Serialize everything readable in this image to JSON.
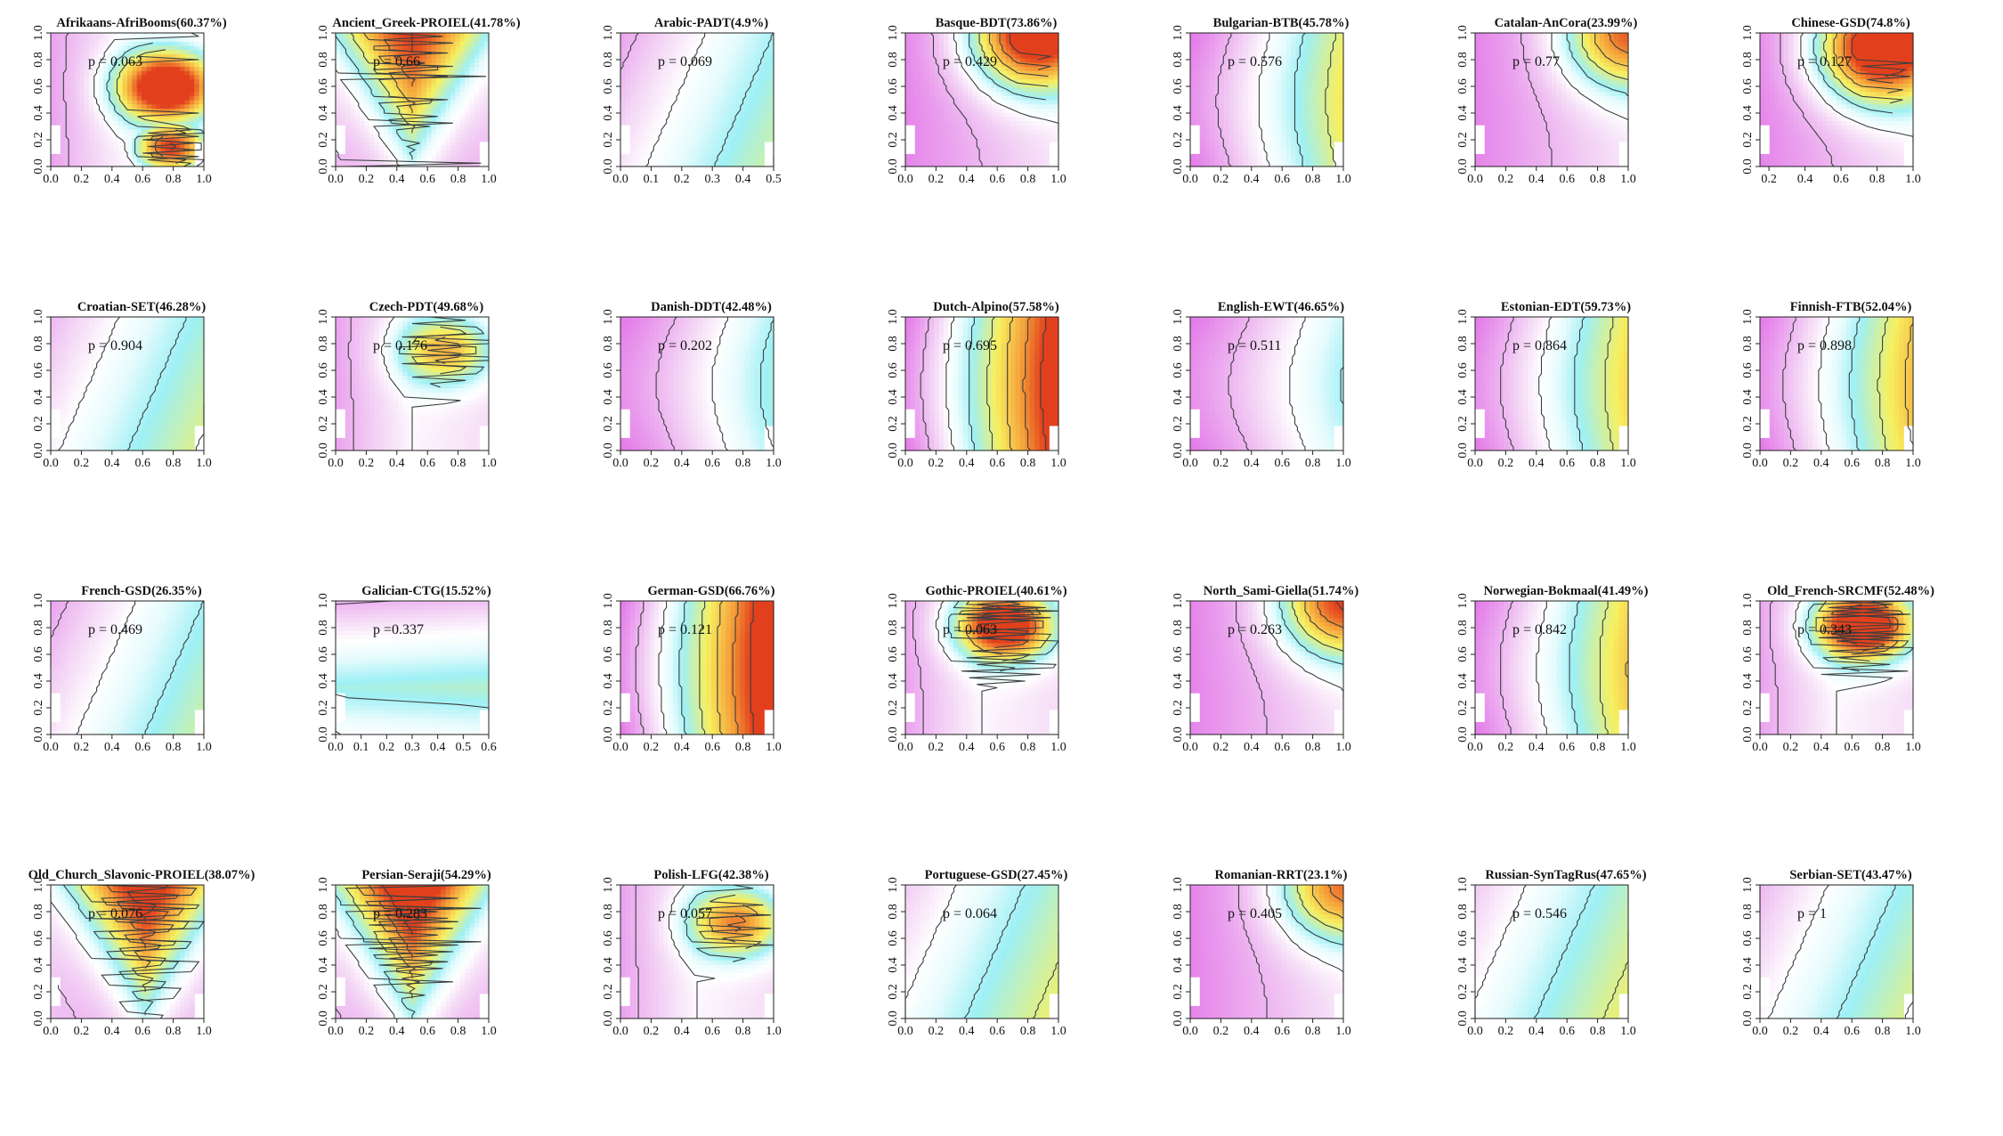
{
  "chart_data": [
    {
      "type": "heatmap",
      "title": "Afrikaans-AfriBooms(60.37%)",
      "p_value": "p = 0.063",
      "xlim": [
        0,
        1
      ],
      "ylim": [
        0,
        1
      ],
      "xticks": [
        "0.0",
        "0.2",
        "0.4",
        "0.6",
        "0.8",
        "1.0"
      ],
      "yticks": [
        "0.0",
        "0.2",
        "0.4",
        "0.6",
        "0.8",
        "1.0"
      ],
      "surface": {
        "type": "rings",
        "x": 0.76,
        "y": 0.6,
        "max": 3.0,
        "blob2": {
          "x": 0.78,
          "y": 0.15,
          "h": 2.6
        }
      }
    },
    {
      "type": "heatmap",
      "title": "Ancient_Greek-PROIEL(41.78%)",
      "p_value": "p = 0.66",
      "xlim": [
        0,
        1
      ],
      "ylim": [
        0,
        1
      ],
      "xticks": [
        "0.0",
        "0.2",
        "0.4",
        "0.6",
        "0.8",
        "1.0"
      ],
      "yticks": [
        "0.0",
        "0.2",
        "0.4",
        "0.6",
        "0.8",
        "1.0"
      ],
      "surface": {
        "type": "valley",
        "x": 0.5,
        "y": 1.0,
        "max": 2.6
      }
    },
    {
      "type": "heatmap",
      "title": "Arabic-PADT(4.9%)",
      "p_value": "p = 0.069",
      "xlim": [
        0,
        0.5
      ],
      "ylim": [
        0,
        1
      ],
      "xticks": [
        "0.0",
        "0.1",
        "0.2",
        "0.3",
        "0.4",
        "0.5"
      ],
      "yticks": [
        "0.0",
        "0.2",
        "0.4",
        "0.6",
        "0.8",
        "1.0"
      ],
      "surface": {
        "type": "flat",
        "level": 0.5
      }
    },
    {
      "type": "heatmap",
      "title": "Basque-BDT(73.86%)",
      "p_value": "p = 0.429",
      "xlim": [
        0,
        1
      ],
      "ylim": [
        0,
        1
      ],
      "xticks": [
        "0.0",
        "0.2",
        "0.4",
        "0.6",
        "0.8",
        "1.0"
      ],
      "yticks": [
        "0.0",
        "0.2",
        "0.4",
        "0.6",
        "0.8",
        "1.0"
      ],
      "surface": {
        "type": "corner",
        "x": 0.85,
        "y": 1.0,
        "max": 2.8
      }
    },
    {
      "type": "heatmap",
      "title": "Bulgarian-BTB(45.78%)",
      "p_value": "p = 0.576",
      "xlim": [
        0,
        1
      ],
      "ylim": [
        0,
        1
      ],
      "xticks": [
        "0.0",
        "0.2",
        "0.4",
        "0.6",
        "0.8",
        "1.0"
      ],
      "yticks": [
        "0.0",
        "0.2",
        "0.4",
        "0.6",
        "0.8",
        "1.0"
      ],
      "surface": {
        "type": "gradx",
        "max": 1.6
      }
    },
    {
      "type": "heatmap",
      "title": "Catalan-AnCora(23.99%)",
      "p_value": "p = 0.77",
      "xlim": [
        0,
        1
      ],
      "ylim": [
        0,
        1
      ],
      "xticks": [
        "0.0",
        "0.2",
        "0.4",
        "0.6",
        "0.8",
        "1.0"
      ],
      "yticks": [
        "0.0",
        "0.2",
        "0.4",
        "0.6",
        "0.8",
        "1.0"
      ],
      "surface": {
        "type": "corner",
        "x": 1.0,
        "y": 1.0,
        "max": 2.0
      }
    },
    {
      "type": "heatmap",
      "title": "Chinese-GSD(74.8%)",
      "p_value": "p = 0.127",
      "xlim": [
        0.15,
        1
      ],
      "ylim": [
        0,
        1
      ],
      "xticks": [
        "0.2",
        "0.4",
        "0.6",
        "0.8",
        "1.0"
      ],
      "yticks": [
        "0.0",
        "0.2",
        "0.4",
        "0.6",
        "0.8",
        "1.0"
      ],
      "surface": {
        "type": "corner",
        "x": 0.8,
        "y": 0.9,
        "max": 3.0
      }
    },
    {
      "type": "heatmap",
      "title": "Croatian-SET(46.28%)",
      "p_value": "p = 0.904",
      "xlim": [
        0,
        1
      ],
      "ylim": [
        0,
        1
      ],
      "xticks": [
        "0.0",
        "0.2",
        "0.4",
        "0.6",
        "0.8",
        "1.0"
      ],
      "yticks": [
        "0.0",
        "0.2",
        "0.4",
        "0.6",
        "0.8",
        "1.0"
      ],
      "surface": {
        "type": "flat",
        "level": 0.6
      }
    },
    {
      "type": "heatmap",
      "title": "Czech-PDT(49.68%)",
      "p_value": "p = 0.176",
      "xlim": [
        0,
        1
      ],
      "ylim": [
        0,
        1
      ],
      "xticks": [
        "0.0",
        "0.2",
        "0.4",
        "0.6",
        "0.8",
        "1.0"
      ],
      "yticks": [
        "0.0",
        "0.2",
        "0.4",
        "0.6",
        "0.8",
        "1.0"
      ],
      "surface": {
        "type": "rings",
        "x": 0.72,
        "y": 0.75,
        "max": 1.5
      }
    },
    {
      "type": "heatmap",
      "title": "Danish-DDT(42.48%)",
      "p_value": "p = 0.202",
      "xlim": [
        0,
        1
      ],
      "ylim": [
        0,
        1
      ],
      "xticks": [
        "0.0",
        "0.2",
        "0.4",
        "0.6",
        "0.8",
        "1.0"
      ],
      "yticks": [
        "0.0",
        "0.2",
        "0.4",
        "0.6",
        "0.8",
        "1.0"
      ],
      "surface": {
        "type": "gradx",
        "max": 1.1
      }
    },
    {
      "type": "heatmap",
      "title": "Dutch-Alpino(57.58%)",
      "p_value": "p = 0.695",
      "xlim": [
        0,
        1
      ],
      "ylim": [
        0,
        1
      ],
      "xticks": [
        "0.0",
        "0.2",
        "0.4",
        "0.6",
        "0.8",
        "1.0"
      ],
      "yticks": [
        "0.0",
        "0.2",
        "0.4",
        "0.6",
        "0.8",
        "1.0"
      ],
      "surface": {
        "type": "gradx",
        "max": 3.0
      }
    },
    {
      "type": "heatmap",
      "title": "English-EWT(46.65%)",
      "p_value": "p = 0.511",
      "xlim": [
        0,
        1
      ],
      "ylim": [
        0,
        1
      ],
      "xticks": [
        "0.0",
        "0.2",
        "0.4",
        "0.6",
        "0.8",
        "1.0"
      ],
      "yticks": [
        "0.0",
        "0.2",
        "0.4",
        "0.6",
        "0.8",
        "1.0"
      ],
      "surface": {
        "type": "gradx",
        "max": 1.0
      }
    },
    {
      "type": "heatmap",
      "title": "Estonian-EDT(59.73%)",
      "p_value": "p = 0.864",
      "xlim": [
        0,
        1
      ],
      "ylim": [
        0,
        1
      ],
      "xticks": [
        "0.0",
        "0.2",
        "0.4",
        "0.6",
        "0.8",
        "1.0"
      ],
      "yticks": [
        "0.0",
        "0.2",
        "0.4",
        "0.6",
        "0.8",
        "1.0"
      ],
      "surface": {
        "type": "gradx",
        "max": 1.7
      }
    },
    {
      "type": "heatmap",
      "title": "Finnish-FTB(52.04%)",
      "p_value": "p = 0.898",
      "xlim": [
        0,
        1
      ],
      "ylim": [
        0,
        1
      ],
      "xticks": [
        "0.0",
        "0.2",
        "0.4",
        "0.6",
        "0.8",
        "1.0"
      ],
      "yticks": [
        "0.0",
        "0.2",
        "0.4",
        "0.6",
        "0.8",
        "1.0"
      ],
      "surface": {
        "type": "gradx",
        "max": 1.9
      }
    },
    {
      "type": "heatmap",
      "title": "French-GSD(26.35%)",
      "p_value": "p = 0.469",
      "xlim": [
        0,
        1
      ],
      "ylim": [
        0,
        1
      ],
      "xticks": [
        "0.0",
        "0.2",
        "0.4",
        "0.6",
        "0.8",
        "1.0"
      ],
      "yticks": [
        "0.0",
        "0.2",
        "0.4",
        "0.6",
        "0.8",
        "1.0"
      ],
      "surface": {
        "type": "flat",
        "level": 0.5
      }
    },
    {
      "type": "heatmap",
      "title": "Galician-CTG(15.52%)",
      "p_value": "p =0.337",
      "xlim": [
        0,
        0.6
      ],
      "ylim": [
        0,
        1
      ],
      "xticks": [
        "0.0",
        "0.1",
        "0.2",
        "0.3",
        "0.4",
        "0.5",
        "0.6"
      ],
      "yticks": [
        "0.0",
        "0.2",
        "0.4",
        "0.6",
        "0.8",
        "1.0"
      ],
      "surface": {
        "type": "grady",
        "max": 1.0
      }
    },
    {
      "type": "heatmap",
      "title": "German-GSD(66.76%)",
      "p_value": "p = 0.121",
      "xlim": [
        0,
        1
      ],
      "ylim": [
        0,
        1
      ],
      "xticks": [
        "0.0",
        "0.2",
        "0.4",
        "0.6",
        "0.8",
        "1.0"
      ],
      "yticks": [
        "0.0",
        "0.2",
        "0.4",
        "0.6",
        "0.8",
        "1.0"
      ],
      "surface": {
        "type": "gradx",
        "max": 3.2
      }
    },
    {
      "type": "heatmap",
      "title": "Gothic-PROIEL(40.61%)",
      "p_value": "p = 0.063",
      "xlim": [
        0,
        1
      ],
      "ylim": [
        0,
        1
      ],
      "xticks": [
        "0.0",
        "0.2",
        "0.4",
        "0.6",
        "0.8",
        "1.0"
      ],
      "yticks": [
        "0.0",
        "0.2",
        "0.4",
        "0.6",
        "0.8",
        "1.0"
      ],
      "surface": {
        "type": "rings",
        "x": 0.65,
        "y": 0.82,
        "max": 2.8
      }
    },
    {
      "type": "heatmap",
      "title": "North_Sami-Giella(51.74%)",
      "p_value": "p = 0.263",
      "xlim": [
        0,
        1
      ],
      "ylim": [
        0,
        1
      ],
      "xticks": [
        "0.0",
        "0.2",
        "0.4",
        "0.6",
        "0.8",
        "1.0"
      ],
      "yticks": [
        "0.0",
        "0.2",
        "0.4",
        "0.6",
        "0.8",
        "1.0"
      ],
      "surface": {
        "type": "corner",
        "x": 1.0,
        "y": 1.0,
        "max": 2.2
      }
    },
    {
      "type": "heatmap",
      "title": "Norwegian-Bokmaal(41.49%)",
      "p_value": "p = 0.842",
      "xlim": [
        0,
        1
      ],
      "ylim": [
        0,
        1
      ],
      "xticks": [
        "0.0",
        "0.2",
        "0.4",
        "0.6",
        "0.8",
        "1.0"
      ],
      "yticks": [
        "0.0",
        "0.2",
        "0.4",
        "0.6",
        "0.8",
        "1.0"
      ],
      "surface": {
        "type": "gradx",
        "max": 1.8
      }
    },
    {
      "type": "heatmap",
      "title": "Old_French-SRCMF(52.48%)",
      "p_value": "p = 0.343",
      "xlim": [
        0,
        1
      ],
      "ylim": [
        0,
        1
      ],
      "xticks": [
        "0.0",
        "0.2",
        "0.4",
        "0.6",
        "0.8",
        "1.0"
      ],
      "yticks": [
        "0.0",
        "0.2",
        "0.4",
        "0.6",
        "0.8",
        "1.0"
      ],
      "surface": {
        "type": "rings",
        "x": 0.68,
        "y": 0.82,
        "max": 3.0
      }
    },
    {
      "type": "heatmap",
      "title": "Old_Church_Slavonic-PROIEL(38.07%)",
      "p_value": "p = 0.076",
      "xlim": [
        0,
        1
      ],
      "ylim": [
        0,
        1
      ],
      "xticks": [
        "0.0",
        "0.2",
        "0.4",
        "0.6",
        "0.8",
        "1.0"
      ],
      "yticks": [
        "0.0",
        "0.2",
        "0.4",
        "0.6",
        "0.8",
        "1.0"
      ],
      "surface": {
        "type": "valley",
        "x": 0.62,
        "y": 1.0,
        "max": 2.8
      }
    },
    {
      "type": "heatmap",
      "title": "Persian-Seraji(54.29%)",
      "p_value": "p = 0.283",
      "xlim": [
        0,
        1
      ],
      "ylim": [
        0,
        1
      ],
      "xticks": [
        "0.0",
        "0.2",
        "0.4",
        "0.6",
        "0.8",
        "1.0"
      ],
      "yticks": [
        "0.0",
        "0.2",
        "0.4",
        "0.6",
        "0.8",
        "1.0"
      ],
      "surface": {
        "type": "valley",
        "x": 0.5,
        "y": 1.0,
        "max": 3.0
      }
    },
    {
      "type": "heatmap",
      "title": "Polish-LFG(42.38%)",
      "p_value": "p = 0.057",
      "xlim": [
        0,
        1
      ],
      "ylim": [
        0,
        1
      ],
      "xticks": [
        "0.0",
        "0.2",
        "0.4",
        "0.6",
        "0.8",
        "1.0"
      ],
      "yticks": [
        "0.0",
        "0.2",
        "0.4",
        "0.6",
        "0.8",
        "1.0"
      ],
      "surface": {
        "type": "rings",
        "x": 0.76,
        "y": 0.72,
        "max": 1.8
      }
    },
    {
      "type": "heatmap",
      "title": "Portuguese-GSD(27.45%)",
      "p_value": "p = 0.064",
      "xlim": [
        0,
        1
      ],
      "ylim": [
        0,
        1
      ],
      "xticks": [
        "0.0",
        "0.2",
        "0.4",
        "0.6",
        "0.8",
        "1.0"
      ],
      "yticks": [
        "0.0",
        "0.2",
        "0.4",
        "0.6",
        "0.8",
        "1.0"
      ],
      "surface": {
        "type": "flat",
        "level": 0.7
      }
    },
    {
      "type": "heatmap",
      "title": "Romanian-RRT(23.1%)",
      "p_value": "p = 0.405",
      "xlim": [
        0,
        1
      ],
      "ylim": [
        0,
        1
      ],
      "xticks": [
        "0.0",
        "0.2",
        "0.4",
        "0.6",
        "0.8",
        "1.0"
      ],
      "yticks": [
        "0.0",
        "0.2",
        "0.4",
        "0.6",
        "0.8",
        "1.0"
      ],
      "surface": {
        "type": "corner",
        "x": 1.0,
        "y": 1.0,
        "max": 1.9
      }
    },
    {
      "type": "heatmap",
      "title": "Russian-SynTagRus(47.65%)",
      "p_value": "p = 0.546",
      "xlim": [
        0,
        1
      ],
      "ylim": [
        0,
        1
      ],
      "xticks": [
        "0.0",
        "0.2",
        "0.4",
        "0.6",
        "0.8",
        "1.0"
      ],
      "yticks": [
        "0.0",
        "0.2",
        "0.4",
        "0.6",
        "0.8",
        "1.0"
      ],
      "surface": {
        "type": "flat",
        "level": 0.7
      }
    },
    {
      "type": "heatmap",
      "title": "Serbian-SET(43.47%)",
      "p_value": "p = 1",
      "xlim": [
        0,
        1
      ],
      "ylim": [
        0,
        1
      ],
      "xticks": [
        "0.0",
        "0.2",
        "0.4",
        "0.6",
        "0.8",
        "1.0"
      ],
      "yticks": [
        "0.0",
        "0.2",
        "0.4",
        "0.6",
        "0.8",
        "1.0"
      ],
      "surface": {
        "type": "flat",
        "level": 0.6
      }
    }
  ],
  "colors": {
    "magenta": "#e066e6",
    "light_magenta": "#f3d4f5",
    "cyan": "#9ef0f5",
    "light_cyan": "#e6fbfd",
    "yellow": "#f7f060",
    "orange": "#f5a23a",
    "red": "#e2401d",
    "contour": "#3a3f3f"
  }
}
